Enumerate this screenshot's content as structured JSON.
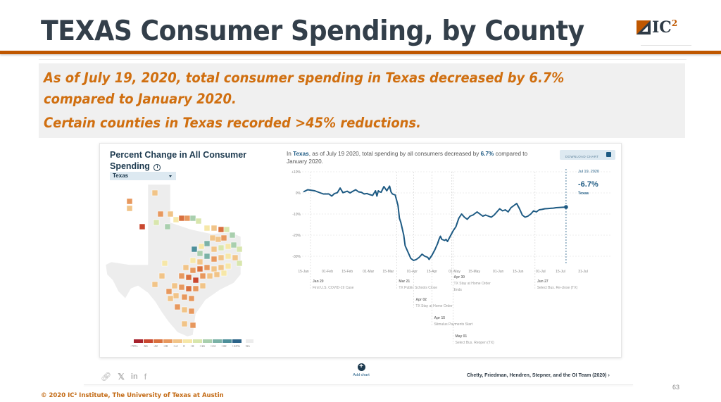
{
  "slide": {
    "title": "TEXAS Consumer Spending, by County",
    "logo_text": "IC",
    "logo_superscript": "2",
    "summary_lines": [
      "As of July 19, 2020, total consumer spending in Texas decreased by 6.7%",
      "compared to January 2020.",
      "Certain counties in Texas recorded >45% reductions."
    ],
    "page_number": "63",
    "copyright": "© 2020 IC² Institute, The University of Texas at Austin"
  },
  "colors": {
    "accent_orange": "#bf5700",
    "title_text": "#333f4a",
    "line_series": "#1d5a83"
  },
  "map_panel": {
    "title": "Percent Change in All Consumer Spending",
    "info_icon": "info-icon",
    "state_select": {
      "selected": "Texas"
    },
    "legend": {
      "labels": [
        "-70%",
        "-56",
        "-42",
        "-28",
        "-14",
        "0",
        "+8",
        "+16",
        "+24",
        "+32",
        "+40%",
        "NA"
      ],
      "colors": [
        "#a7232e",
        "#c9472f",
        "#d9703e",
        "#e7985e",
        "#f1c488",
        "#f6e7a8",
        "#d8e6ad",
        "#a9cfae",
        "#7bb2a7",
        "#4d8f9a",
        "#2c6489"
      ]
    }
  },
  "chart_panel": {
    "headline_prefix": "In ",
    "headline_region": "Texas",
    "headline_middle": ", as of July 19 2020, total spending by all consumers decreased by ",
    "headline_value": "6.7%",
    "headline_suffix": " compared to January 2020.",
    "download_label": "DOWNLOAD CHART",
    "readout": {
      "date": "Jul 19, 2020",
      "value": "-6.7%",
      "region": "Texas"
    }
  },
  "chart_data": {
    "type": "line",
    "title": "Percent Change in All Consumer Spending, Texas",
    "xlabel": "",
    "ylabel": "",
    "ylim": [
      -30,
      10
    ],
    "yticks": [
      10,
      0,
      -10,
      -20,
      -30
    ],
    "ytick_labels": [
      "+10%",
      "0%",
      "-10%",
      "-20%",
      "-30%"
    ],
    "x_domain_days": [
      0,
      198
    ],
    "xticks_days": [
      0,
      17,
      31,
      46,
      60,
      77,
      91,
      107,
      121,
      138,
      152,
      168,
      182,
      198
    ],
    "xtick_labels": [
      "15-Jan",
      "01-Feb",
      "15-Feb",
      "01-Mar",
      "15-Mar",
      "01-Apr",
      "15-Apr",
      "01-May",
      "15-May",
      "01-Jun",
      "15-Jun",
      "01-Jul",
      "15-Jul",
      "31-Jul"
    ],
    "grid": true,
    "series": [
      {
        "name": "Texas",
        "x_days": [
          0,
          3,
          8,
          14,
          18,
          20,
          22,
          24,
          26,
          28,
          31,
          33,
          35,
          37,
          39,
          41,
          43,
          45,
          47,
          49,
          51,
          52,
          53,
          54,
          55,
          57,
          59,
          61,
          62,
          63,
          65,
          67,
          68,
          69,
          71,
          72,
          74,
          76,
          78,
          80,
          82,
          84,
          86,
          88,
          89,
          91,
          93,
          95,
          96,
          97,
          98,
          100,
          101,
          102,
          104,
          106,
          108,
          110,
          112,
          114,
          116,
          118,
          120,
          121,
          123,
          125,
          127,
          129,
          131,
          133,
          135,
          137,
          139,
          141,
          143,
          145,
          147,
          149,
          151,
          153,
          155,
          157,
          159,
          161,
          163,
          165,
          167,
          169,
          171,
          173,
          175,
          177,
          179,
          186
        ],
        "values": [
          0.5,
          1.5,
          1.0,
          -0.5,
          -0.5,
          -1.5,
          -0.3,
          0.1,
          2.3,
          0.1,
          0.8,
          0,
          0.8,
          1.5,
          0.5,
          0.3,
          -0.5,
          -0.3,
          -0.8,
          -1.2,
          1.0,
          -1.5,
          1.0,
          0.5,
          0.3,
          3.0,
          1.0,
          3.2,
          0.5,
          -0.5,
          -1.0,
          -6.0,
          -12.0,
          -14.0,
          -20.0,
          -25.0,
          -28.0,
          -31.0,
          -32.0,
          -31.5,
          -30.5,
          -29.0,
          -30.0,
          -30.5,
          -31.5,
          -29.5,
          -27.0,
          -24.0,
          -22.0,
          -20.5,
          -22.0,
          -22.5,
          -22.0,
          -23.0,
          -20.5,
          -18.0,
          -16.0,
          -12.0,
          -10.0,
          -11.5,
          -12.5,
          -11.0,
          -10.5,
          -10.0,
          -9.0,
          -10.0,
          -11.0,
          -10.5,
          -11.0,
          -11.5,
          -10.5,
          -9.0,
          -7.5,
          -8.5,
          -8.0,
          -9.0,
          -7.0,
          -6.0,
          -5.0,
          -7.5,
          -10.5,
          -11.5,
          -11.0,
          -10.0,
          -8.5,
          -9.0,
          -8.0,
          -7.8,
          -7.5,
          -7.4,
          -7.3,
          -7.2,
          -7.0,
          -6.7
        ]
      }
    ],
    "events": [
      {
        "day": 5,
        "date": "Jan 20",
        "label": "First U.S. COVID-19 Case",
        "row": 0
      },
      {
        "day": 66,
        "date": "Mar 21",
        "label": "TX Public Schools Close",
        "row": 0
      },
      {
        "day": 78,
        "date": "Apr 02",
        "label": "TX Stay at Home Order",
        "row": 1
      },
      {
        "day": 91,
        "date": "Apr 15",
        "label": "Stimulus Payments Start",
        "row": 2
      },
      {
        "day": 106,
        "date": "May 01",
        "label": "Select Bus. Reopen (TX)",
        "row": 3
      },
      {
        "day": 105,
        "date": "Apr 30",
        "label": "TX Stay at Home Order Ends",
        "row": -1
      },
      {
        "day": 164,
        "date": "Jun 27",
        "label": "Select Bus. Re-close (TX)",
        "row": 0
      }
    ],
    "annotation": {
      "date": "Jul 19, 2020",
      "value": "-6.7%",
      "region": "Texas"
    }
  },
  "footer": {
    "share_icons": [
      "link-icon",
      "twitter-icon",
      "linkedin-icon",
      "facebook-icon"
    ],
    "add_chart_label": "Add chart",
    "citation": "Chetty, Friedman, Hendren, Stepner, and the OI Team (2020) ›"
  }
}
